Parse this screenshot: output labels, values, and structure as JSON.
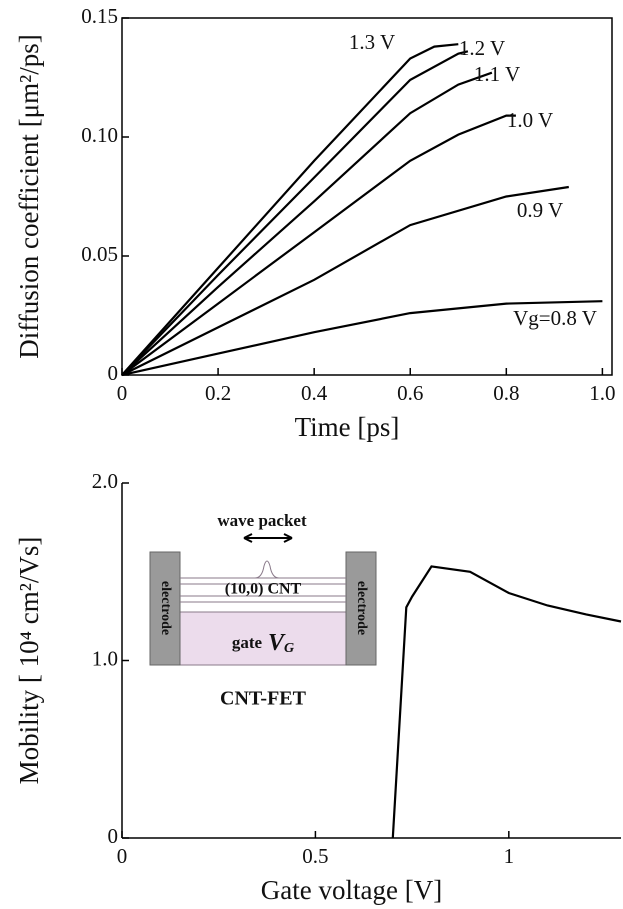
{
  "chart_data": [
    {
      "type": "line",
      "xlabel": "Time [ps]",
      "ylabel": "Diffusion coefficient [μm²/ps]",
      "xlim": [
        0,
        1.02
      ],
      "ylim": [
        0,
        0.15
      ],
      "xticks": [
        0,
        0.2,
        0.4,
        0.6,
        0.8,
        {
          "value": 1.0,
          "label": "1.0"
        }
      ],
      "yticks": [
        0,
        0.05,
        {
          "value": 0.1,
          "label": "0.10"
        },
        0.15
      ],
      "series": [
        {
          "name": "1.3 V",
          "color": "#000000",
          "x": [
            0,
            0.2,
            0.4,
            0.6,
            0.65,
            0.7
          ],
          "values": [
            0,
            0.045,
            0.09,
            0.133,
            0.138,
            0.139
          ]
        },
        {
          "name": "1.2 V",
          "color": "#000000",
          "x": [
            0,
            0.2,
            0.4,
            0.6,
            0.7,
            0.72
          ],
          "values": [
            0,
            0.042,
            0.083,
            0.124,
            0.135,
            0.136
          ]
        },
        {
          "name": "1.1 V",
          "color": "#000000",
          "x": [
            0,
            0.2,
            0.4,
            0.6,
            0.7,
            0.77
          ],
          "values": [
            0,
            0.037,
            0.073,
            0.11,
            0.122,
            0.127
          ]
        },
        {
          "name": "1.0 V",
          "color": "#000000",
          "x": [
            0,
            0.2,
            0.4,
            0.6,
            0.7,
            0.8,
            0.82
          ],
          "values": [
            0,
            0.03,
            0.06,
            0.09,
            0.101,
            0.109,
            0.109
          ]
        },
        {
          "name": "0.9 V",
          "color": "#000000",
          "x": [
            0,
            0.2,
            0.4,
            0.6,
            0.8,
            0.93
          ],
          "values": [
            0,
            0.02,
            0.04,
            0.063,
            0.075,
            0.079
          ]
        },
        {
          "name": "Vg=0.8 V",
          "color": "#000000",
          "x": [
            0,
            0.2,
            0.4,
            0.6,
            0.8,
            1.0
          ],
          "values": [
            0,
            0.009,
            0.018,
            0.026,
            0.03,
            0.031
          ]
        }
      ]
    },
    {
      "type": "line",
      "xlabel": "Gate voltage [V]",
      "ylabel": "Mobility [ 10⁴ cm²/Vs]",
      "xlim": [
        0,
        1.29
      ],
      "ylim": [
        0,
        2.0
      ],
      "xticks": [
        0,
        0.5,
        1
      ],
      "yticks": [
        0,
        {
          "value": 1.0,
          "label": "1.0"
        },
        {
          "value": 2.0,
          "label": "2.0"
        }
      ],
      "series": [
        {
          "color": "#000000",
          "x": [
            0.7,
            0.735,
            0.75,
            0.8,
            0.9,
            1.0,
            1.1,
            1.2,
            1.29
          ],
          "values": [
            0,
            1.3,
            1.36,
            1.53,
            1.5,
            1.38,
            1.31,
            1.26,
            1.22
          ]
        }
      ],
      "inset": {
        "packet": "wave packet",
        "tube": "(10,0) CNT",
        "left_electrode": "electrode",
        "right_electrode": "electrode",
        "gate": "gate",
        "gate_symbol": "V",
        "gate_subscript": "G",
        "device": "CNT-FET"
      }
    }
  ]
}
